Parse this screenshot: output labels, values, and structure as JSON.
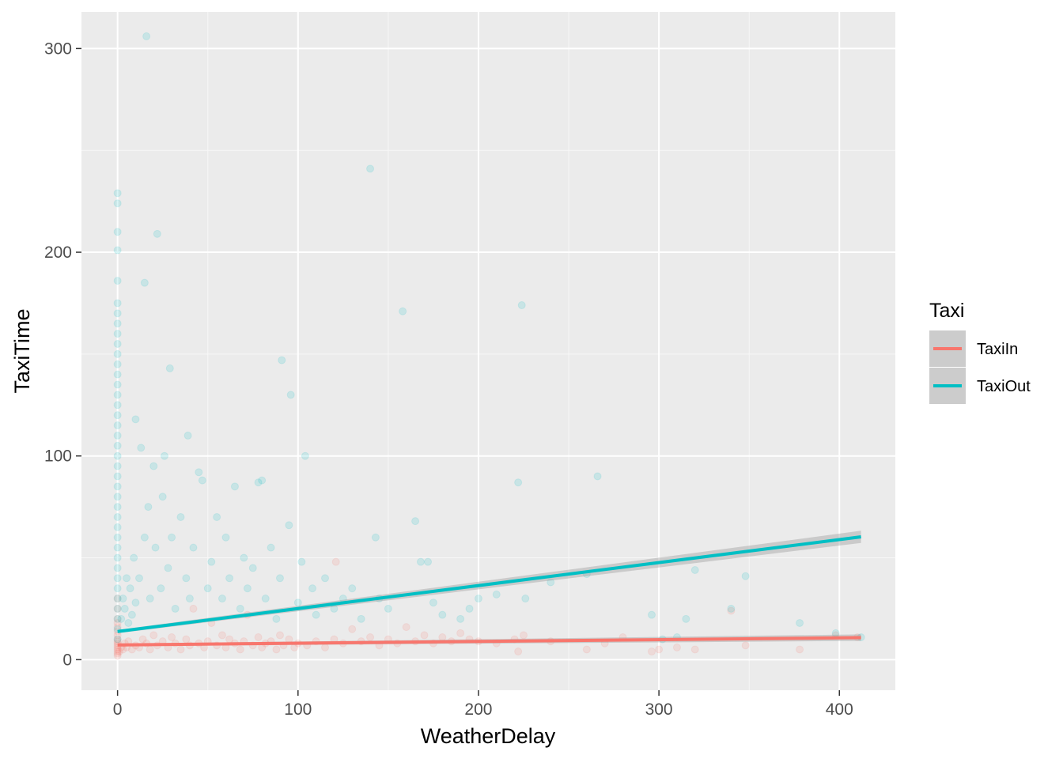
{
  "chart_data": {
    "type": "scatter",
    "xlabel": "WeatherDelay",
    "ylabel": "TaxiTime",
    "xlim": [
      -20,
      431
    ],
    "ylim": [
      -15,
      318
    ],
    "x_ticks": [
      0,
      100,
      200,
      300,
      400
    ],
    "y_ticks": [
      0,
      100,
      200,
      300
    ],
    "grid": true,
    "legend": {
      "title": "Taxi",
      "position": "right",
      "entries": [
        "TaxiIn",
        "TaxiOut"
      ]
    },
    "point_alpha": 0.15,
    "series": [
      {
        "name": "TaxiIn",
        "color": "#F8766D",
        "points": [
          [
            0,
            2
          ],
          [
            0,
            3
          ],
          [
            0,
            4
          ],
          [
            0,
            5
          ],
          [
            0,
            6
          ],
          [
            0,
            7
          ],
          [
            0,
            8
          ],
          [
            0,
            9
          ],
          [
            0,
            10
          ],
          [
            0,
            12
          ],
          [
            0,
            14
          ],
          [
            0,
            16
          ],
          [
            0,
            18
          ],
          [
            0,
            20
          ],
          [
            0,
            25
          ],
          [
            0,
            30
          ],
          [
            1,
            4
          ],
          [
            2,
            6
          ],
          [
            3,
            5
          ],
          [
            4,
            8
          ],
          [
            5,
            6
          ],
          [
            6,
            9
          ],
          [
            8,
            5
          ],
          [
            10,
            7
          ],
          [
            12,
            6
          ],
          [
            14,
            10
          ],
          [
            16,
            8
          ],
          [
            18,
            5
          ],
          [
            20,
            12
          ],
          [
            22,
            7
          ],
          [
            25,
            9
          ],
          [
            28,
            6
          ],
          [
            30,
            11
          ],
          [
            32,
            8
          ],
          [
            35,
            5
          ],
          [
            38,
            10
          ],
          [
            40,
            7
          ],
          [
            42,
            25
          ],
          [
            45,
            8
          ],
          [
            48,
            6
          ],
          [
            50,
            9
          ],
          [
            52,
            18
          ],
          [
            55,
            7
          ],
          [
            58,
            12
          ],
          [
            60,
            6
          ],
          [
            62,
            10
          ],
          [
            65,
            8
          ],
          [
            68,
            5
          ],
          [
            70,
            9
          ],
          [
            72,
            22
          ],
          [
            75,
            7
          ],
          [
            78,
            11
          ],
          [
            80,
            6
          ],
          [
            82,
            8
          ],
          [
            85,
            9
          ],
          [
            88,
            5
          ],
          [
            90,
            12
          ],
          [
            92,
            7
          ],
          [
            95,
            10
          ],
          [
            98,
            6
          ],
          [
            100,
            8
          ],
          [
            105,
            7
          ],
          [
            110,
            9
          ],
          [
            115,
            6
          ],
          [
            120,
            10
          ],
          [
            121,
            48
          ],
          [
            125,
            8
          ],
          [
            130,
            15
          ],
          [
            135,
            9
          ],
          [
            140,
            11
          ],
          [
            145,
            7
          ],
          [
            150,
            10
          ],
          [
            155,
            8
          ],
          [
            160,
            16
          ],
          [
            165,
            9
          ],
          [
            170,
            12
          ],
          [
            175,
            8
          ],
          [
            180,
            11
          ],
          [
            185,
            9
          ],
          [
            190,
            13
          ],
          [
            195,
            10
          ],
          [
            200,
            9
          ],
          [
            210,
            8
          ],
          [
            220,
            10
          ],
          [
            222,
            4
          ],
          [
            225,
            12
          ],
          [
            240,
            9
          ],
          [
            260,
            5
          ],
          [
            270,
            8
          ],
          [
            280,
            11
          ],
          [
            296,
            4
          ],
          [
            300,
            5
          ],
          [
            310,
            6
          ],
          [
            320,
            5
          ],
          [
            340,
            24
          ],
          [
            348,
            7
          ],
          [
            378,
            5
          ],
          [
            398,
            12
          ],
          [
            410,
            11
          ]
        ]
      },
      {
        "name": "TaxiOut",
        "color": "#00BFC4",
        "points": [
          [
            0,
            10
          ],
          [
            0,
            15
          ],
          [
            0,
            20
          ],
          [
            0,
            25
          ],
          [
            0,
            30
          ],
          [
            0,
            35
          ],
          [
            0,
            40
          ],
          [
            0,
            45
          ],
          [
            0,
            50
          ],
          [
            0,
            55
          ],
          [
            0,
            60
          ],
          [
            0,
            65
          ],
          [
            0,
            70
          ],
          [
            0,
            75
          ],
          [
            0,
            80
          ],
          [
            0,
            85
          ],
          [
            0,
            90
          ],
          [
            0,
            95
          ],
          [
            0,
            100
          ],
          [
            0,
            105
          ],
          [
            0,
            110
          ],
          [
            0,
            115
          ],
          [
            0,
            120
          ],
          [
            0,
            125
          ],
          [
            0,
            130
          ],
          [
            0,
            135
          ],
          [
            0,
            140
          ],
          [
            0,
            145
          ],
          [
            0,
            150
          ],
          [
            0,
            155
          ],
          [
            0,
            160
          ],
          [
            0,
            165
          ],
          [
            0,
            170
          ],
          [
            0,
            175
          ],
          [
            0,
            186
          ],
          [
            0,
            201
          ],
          [
            0,
            210
          ],
          [
            0,
            224
          ],
          [
            0,
            229
          ],
          [
            2,
            20
          ],
          [
            3,
            30
          ],
          [
            4,
            25
          ],
          [
            5,
            40
          ],
          [
            6,
            18
          ],
          [
            7,
            35
          ],
          [
            8,
            22
          ],
          [
            9,
            50
          ],
          [
            10,
            28
          ],
          [
            10,
            118
          ],
          [
            12,
            40
          ],
          [
            13,
            104
          ],
          [
            15,
            185
          ],
          [
            15,
            60
          ],
          [
            16,
            306
          ],
          [
            17,
            75
          ],
          [
            18,
            30
          ],
          [
            20,
            95
          ],
          [
            21,
            55
          ],
          [
            22,
            209
          ],
          [
            24,
            35
          ],
          [
            25,
            80
          ],
          [
            26,
            100
          ],
          [
            28,
            45
          ],
          [
            29,
            143
          ],
          [
            30,
            60
          ],
          [
            32,
            25
          ],
          [
            35,
            70
          ],
          [
            38,
            40
          ],
          [
            39,
            110
          ],
          [
            40,
            30
          ],
          [
            42,
            55
          ],
          [
            45,
            92
          ],
          [
            47,
            88
          ],
          [
            50,
            35
          ],
          [
            52,
            48
          ],
          [
            55,
            70
          ],
          [
            58,
            30
          ],
          [
            60,
            60
          ],
          [
            62,
            40
          ],
          [
            65,
            85
          ],
          [
            68,
            25
          ],
          [
            70,
            50
          ],
          [
            72,
            35
          ],
          [
            75,
            45
          ],
          [
            78,
            87
          ],
          [
            80,
            88
          ],
          [
            82,
            30
          ],
          [
            85,
            55
          ],
          [
            88,
            20
          ],
          [
            90,
            40
          ],
          [
            91,
            147
          ],
          [
            95,
            66
          ],
          [
            96,
            130
          ],
          [
            100,
            28
          ],
          [
            102,
            48
          ],
          [
            104,
            100
          ],
          [
            108,
            35
          ],
          [
            110,
            22
          ],
          [
            115,
            40
          ],
          [
            120,
            25
          ],
          [
            125,
            30
          ],
          [
            130,
            35
          ],
          [
            135,
            20
          ],
          [
            140,
            241
          ],
          [
            143,
            60
          ],
          [
            145,
            30
          ],
          [
            150,
            25
          ],
          [
            158,
            171
          ],
          [
            165,
            68
          ],
          [
            168,
            48
          ],
          [
            172,
            48
          ],
          [
            175,
            28
          ],
          [
            180,
            22
          ],
          [
            190,
            20
          ],
          [
            195,
            25
          ],
          [
            200,
            30
          ],
          [
            210,
            32
          ],
          [
            222,
            87
          ],
          [
            224,
            174
          ],
          [
            226,
            30
          ],
          [
            240,
            38
          ],
          [
            260,
            42
          ],
          [
            266,
            90
          ],
          [
            296,
            22
          ],
          [
            302,
            10
          ],
          [
            310,
            11
          ],
          [
            315,
            20
          ],
          [
            320,
            44
          ],
          [
            340,
            25
          ],
          [
            348,
            41
          ],
          [
            378,
            18
          ],
          [
            398,
            13
          ],
          [
            412,
            11
          ]
        ]
      }
    ],
    "trend_lines": [
      {
        "series": "TaxiIn",
        "x": [
          0,
          412
        ],
        "y": [
          7.2,
          10.8
        ],
        "se_halfwidth": [
          0.6,
          1.6
        ]
      },
      {
        "series": "TaxiOut",
        "x": [
          0,
          412
        ],
        "y": [
          13.8,
          60.3
        ],
        "se_halfwidth": [
          0.8,
          3.0
        ]
      }
    ]
  }
}
